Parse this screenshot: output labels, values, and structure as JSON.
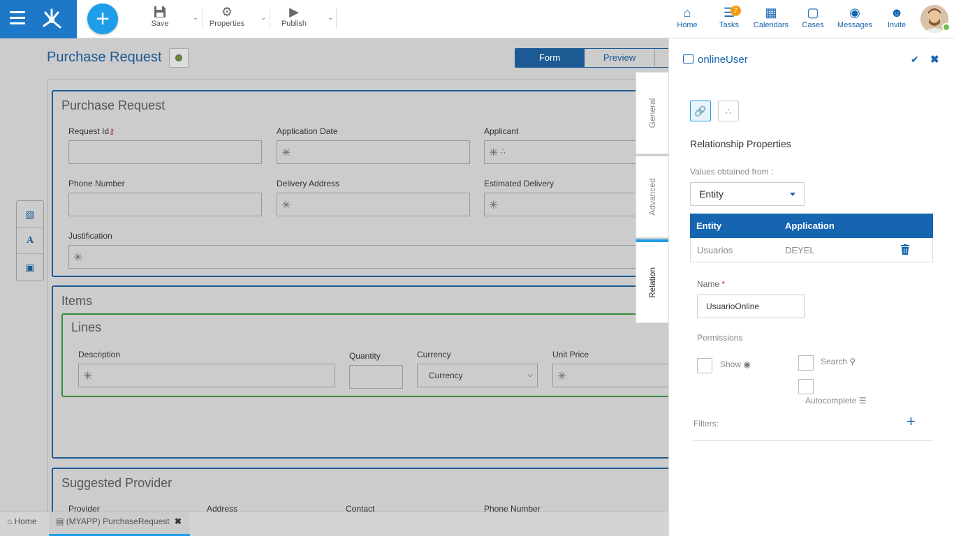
{
  "toolbar": {
    "save_label": "Save",
    "properties_label": "Properties",
    "publish_label": "Publish",
    "add_icon": "plus-icon"
  },
  "nav": {
    "home": "Home",
    "tasks": "Tasks",
    "tasks_badge": "7",
    "calendars": "Calendars",
    "cases": "Cases",
    "messages": "Messages",
    "invite": "Invite"
  },
  "form": {
    "title": "Purchase Request",
    "tab_form": "Form",
    "tab_preview": "Preview",
    "sections": {
      "purchase_request": {
        "title": "Purchase Request",
        "request_id": "Request Id",
        "application_date": "Application Date",
        "applicant": "Applicant",
        "phone_number": "Phone Number",
        "delivery_address": "Delivery Address",
        "estimated_delivery": "Estimated Delivery",
        "justification": "Justification"
      },
      "items": {
        "title": "Items",
        "lines_title": "Lines",
        "description": "Description",
        "quantity": "Quantity",
        "currency": "Currency",
        "currency_value": "Currency",
        "unit_price": "Unit Price"
      },
      "suggested_provider": {
        "title": "Suggested Provider",
        "provider": "Provider",
        "address": "Address",
        "contact": "Contact",
        "phone_number": "Phone Number"
      }
    }
  },
  "side_tabs": {
    "general": "General",
    "advanced": "Advanced",
    "relation": "Relation"
  },
  "panel": {
    "title": "onlineUser",
    "heading": "Relationship Properties",
    "values_label": "Values obtained from :",
    "values_selected": "Entity",
    "table_headers": {
      "entity": "Entity",
      "application": "Application"
    },
    "table_rows": [
      {
        "entity": "Usuarios",
        "application": "DEYEL"
      }
    ],
    "name_label": "Name",
    "required_mark": "*",
    "name_value": "UsuarioOnline",
    "permissions_label": "Permissions",
    "perm_show": "Show",
    "perm_search": "Search",
    "perm_autocomplete": "Autocomplete",
    "filters_label": "Filters:",
    "accent_color": "#1565b0"
  },
  "bottom_tabs": {
    "home": "Home",
    "current": "(MYAPP) PurchaseRequest"
  }
}
